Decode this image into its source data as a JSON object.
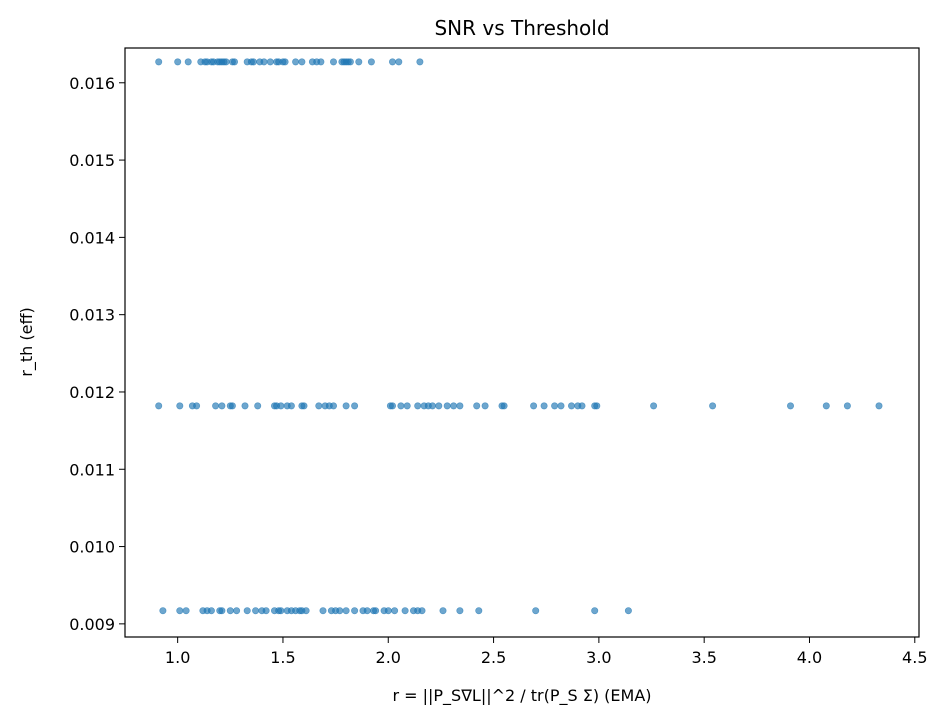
{
  "chart_data": {
    "type": "scatter",
    "title": "SNR vs Threshold",
    "xlabel": "r = ||P_S∇L||^2 / tr(P_S Σ) (EMA)",
    "ylabel": "r_th (eff)",
    "xlim": [
      0.75,
      4.52
    ],
    "ylim": [
      0.00883,
      0.01645
    ],
    "xticks": [
      1.0,
      1.5,
      2.0,
      2.5,
      3.0,
      3.5,
      4.0,
      4.5
    ],
    "xtick_labels": [
      "1.0",
      "1.5",
      "2.0",
      "2.5",
      "3.0",
      "3.5",
      "4.0",
      "4.5"
    ],
    "yticks": [
      0.009,
      0.01,
      0.011,
      0.012,
      0.013,
      0.014,
      0.015,
      0.016
    ],
    "ytick_labels": [
      "0.009",
      "0.010",
      "0.011",
      "0.012",
      "0.013",
      "0.014",
      "0.015",
      "0.016"
    ],
    "grid": false,
    "marker_color": "#1f77b4",
    "marker_alpha": 0.65,
    "series": [
      {
        "y": 0.01627,
        "x": [
          0.91,
          1.0,
          1.05,
          1.11,
          1.13,
          1.14,
          1.16,
          1.17,
          1.19,
          1.2,
          1.21,
          1.22,
          1.23,
          1.26,
          1.27,
          1.33,
          1.35,
          1.36,
          1.39,
          1.41,
          1.44,
          1.47,
          1.48,
          1.5,
          1.51,
          1.56,
          1.59,
          1.64,
          1.66,
          1.68,
          1.74,
          1.78,
          1.79,
          1.8,
          1.81,
          1.82,
          1.86,
          1.92,
          2.02,
          2.05,
          2.15
        ]
      },
      {
        "y": 0.01182,
        "x": [
          0.91,
          1.01,
          1.07,
          1.09,
          1.18,
          1.21,
          1.25,
          1.26,
          1.32,
          1.38,
          1.46,
          1.47,
          1.49,
          1.52,
          1.54,
          1.59,
          1.6,
          1.67,
          1.7,
          1.72,
          1.74,
          1.8,
          1.84,
          2.01,
          2.02,
          2.06,
          2.09,
          2.14,
          2.17,
          2.19,
          2.21,
          2.24,
          2.28,
          2.31,
          2.34,
          2.42,
          2.46,
          2.54,
          2.55,
          2.69,
          2.74,
          2.79,
          2.82,
          2.87,
          2.9,
          2.92,
          2.98,
          2.99,
          3.26,
          3.54,
          3.91,
          4.08,
          4.18,
          4.33
        ]
      },
      {
        "y": 0.00917,
        "x": [
          0.93,
          1.01,
          1.04,
          1.12,
          1.14,
          1.16,
          1.2,
          1.21,
          1.25,
          1.28,
          1.33,
          1.37,
          1.4,
          1.42,
          1.46,
          1.48,
          1.49,
          1.52,
          1.54,
          1.56,
          1.58,
          1.59,
          1.61,
          1.69,
          1.73,
          1.75,
          1.77,
          1.8,
          1.84,
          1.88,
          1.9,
          1.93,
          1.94,
          1.98,
          2.0,
          2.03,
          2.08,
          2.12,
          2.14,
          2.16,
          2.26,
          2.34,
          2.43,
          2.7,
          2.98,
          3.14
        ]
      }
    ]
  }
}
